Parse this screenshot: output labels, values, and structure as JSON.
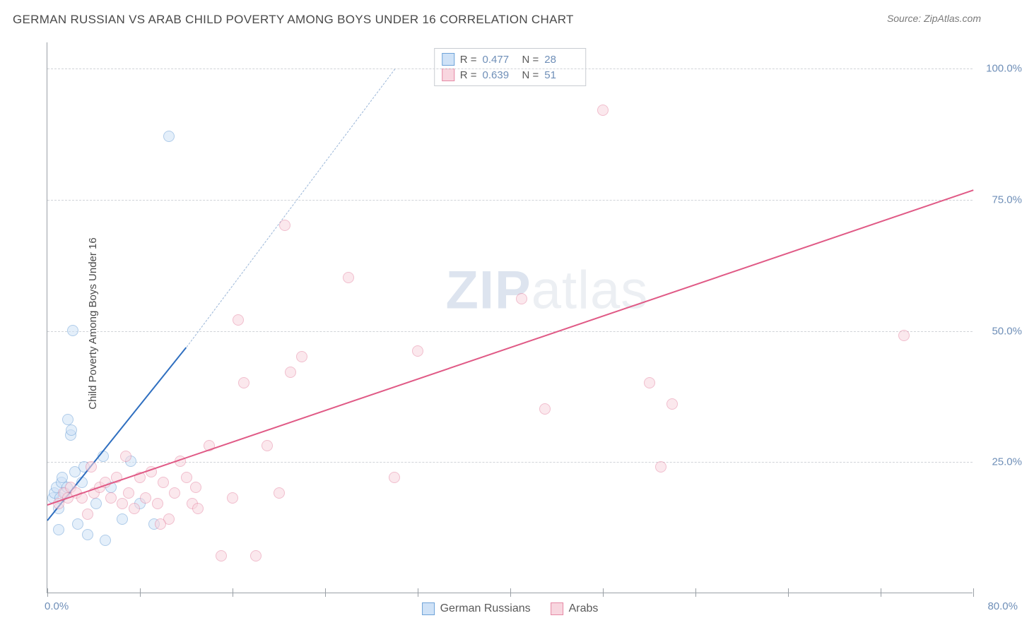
{
  "title": "GERMAN RUSSIAN VS ARAB CHILD POVERTY AMONG BOYS UNDER 16 CORRELATION CHART",
  "source": "Source: ZipAtlas.com",
  "ylabel": "Child Poverty Among Boys Under 16",
  "watermark_a": "ZIP",
  "watermark_b": "atlas",
  "chart": {
    "type": "scatter",
    "xlim": [
      0,
      80
    ],
    "ylim": [
      0,
      105
    ],
    "yticks": [
      25,
      50,
      75,
      100
    ],
    "ytick_labels": [
      "25.0%",
      "50.0%",
      "75.0%",
      "100.0%"
    ],
    "xticks": [
      0,
      8,
      16,
      24,
      32,
      40,
      48,
      56,
      64,
      72,
      80
    ],
    "xlimit_labels": {
      "min": "0.0%",
      "max": "80.0%"
    },
    "background": "#ffffff",
    "grid_color": "#d0d3d8",
    "axis_color": "#9aa0a6",
    "tick_label_color": "#6f8fb8",
    "marker_radius": 8,
    "marker_opacity": 0.55,
    "series": [
      {
        "key": "german_russians",
        "label": "German Russians",
        "color_fill": "#cfe2f7",
        "color_stroke": "#6fa3d8",
        "trend_color": "#2f6fc0",
        "trend_dash_color": "#9ab6d8",
        "r": "0.477",
        "n": "28",
        "points": [
          [
            0.5,
            18
          ],
          [
            0.6,
            19
          ],
          [
            0.8,
            20
          ],
          [
            1.0,
            16
          ],
          [
            1.2,
            21
          ],
          [
            1.3,
            22
          ],
          [
            1.1,
            18
          ],
          [
            1.5,
            19
          ],
          [
            1.7,
            20
          ],
          [
            2.0,
            30
          ],
          [
            2.1,
            31
          ],
          [
            2.4,
            23
          ],
          [
            2.6,
            13
          ],
          [
            3.0,
            21
          ],
          [
            3.2,
            24
          ],
          [
            3.5,
            11
          ],
          [
            4.2,
            17
          ],
          [
            4.8,
            26
          ],
          [
            5.5,
            20
          ],
          [
            6.5,
            14
          ],
          [
            7.2,
            25
          ],
          [
            8.0,
            17
          ],
          [
            9.2,
            13
          ],
          [
            1.0,
            12
          ],
          [
            1.8,
            33
          ],
          [
            2.2,
            50
          ],
          [
            10.5,
            87
          ],
          [
            5.0,
            10
          ]
        ],
        "trend": {
          "x1": 0,
          "y1": 14,
          "x2": 12,
          "y2": 47
        },
        "trend_dash": {
          "x1": 12,
          "y1": 47,
          "x2": 30,
          "y2": 100
        }
      },
      {
        "key": "arabs",
        "label": "Arabs",
        "color_fill": "#f8d6df",
        "color_stroke": "#e68aa6",
        "trend_color": "#e05a86",
        "r": "0.639",
        "n": "51",
        "points": [
          [
            1.0,
            17
          ],
          [
            1.4,
            19
          ],
          [
            1.8,
            18
          ],
          [
            2.0,
            20
          ],
          [
            2.5,
            19
          ],
          [
            3.0,
            18
          ],
          [
            3.5,
            15
          ],
          [
            4.0,
            19
          ],
          [
            4.5,
            20
          ],
          [
            5.0,
            21
          ],
          [
            5.5,
            18
          ],
          [
            6.0,
            22
          ],
          [
            6.5,
            17
          ],
          [
            7.0,
            19
          ],
          [
            7.5,
            16
          ],
          [
            8.0,
            22
          ],
          [
            8.5,
            18
          ],
          [
            9.0,
            23
          ],
          [
            9.5,
            17
          ],
          [
            10.0,
            21
          ],
          [
            10.5,
            14
          ],
          [
            11.0,
            19
          ],
          [
            11.5,
            25
          ],
          [
            12.0,
            22
          ],
          [
            12.5,
            17
          ],
          [
            13.0,
            16
          ],
          [
            14.0,
            28
          ],
          [
            15.0,
            7
          ],
          [
            16.0,
            18
          ],
          [
            16.5,
            52
          ],
          [
            17.0,
            40
          ],
          [
            18.0,
            7
          ],
          [
            19.0,
            28
          ],
          [
            20.0,
            19
          ],
          [
            20.5,
            70
          ],
          [
            21.0,
            42
          ],
          [
            22.0,
            45
          ],
          [
            26.0,
            60
          ],
          [
            30.0,
            22
          ],
          [
            32.0,
            46
          ],
          [
            41.0,
            56
          ],
          [
            43.0,
            35
          ],
          [
            48.0,
            92
          ],
          [
            52.0,
            40
          ],
          [
            53.0,
            24
          ],
          [
            54.0,
            36
          ],
          [
            74.0,
            49
          ],
          [
            3.8,
            24
          ],
          [
            6.8,
            26
          ],
          [
            9.8,
            13
          ],
          [
            12.8,
            20
          ]
        ],
        "trend": {
          "x1": 0,
          "y1": 17,
          "x2": 80,
          "y2": 77
        }
      }
    ]
  },
  "legend": {
    "items": [
      {
        "label": "German Russians",
        "fill": "#cfe2f7",
        "stroke": "#6fa3d8"
      },
      {
        "label": "Arabs",
        "fill": "#f8d6df",
        "stroke": "#e68aa6"
      }
    ]
  }
}
